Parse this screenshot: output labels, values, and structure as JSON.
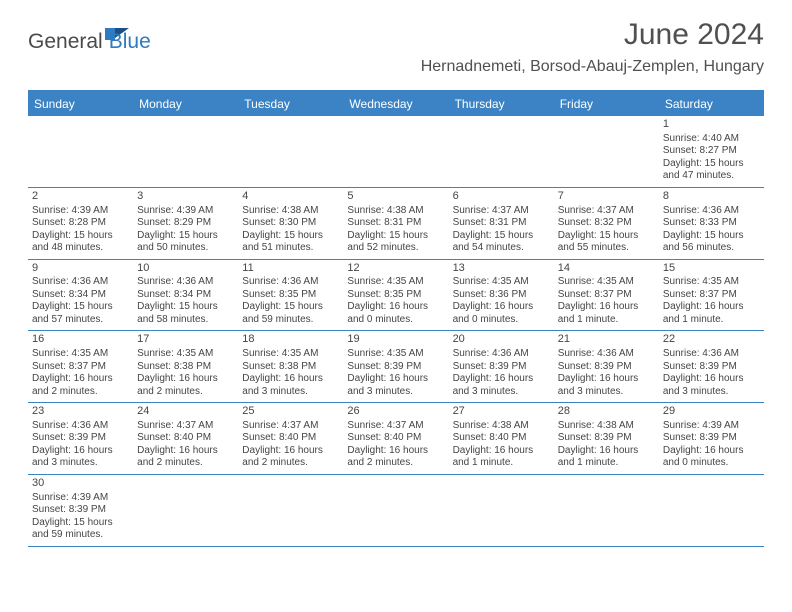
{
  "brand": {
    "part1": "General",
    "part2": "Blue"
  },
  "title": "June 2024",
  "location": "Hernadnemeti, Borsod-Abauj-Zemplen, Hungary",
  "colors": {
    "header_bg": "#3b83c4",
    "header_text": "#ffffff",
    "body_text": "#454545",
    "brand_gray": "#4a4a4a",
    "brand_blue": "#2f7ac0",
    "empty_week_bg": "#f2f2f2",
    "page_bg": "#ffffff"
  },
  "typography": {
    "title_fontsize": 30,
    "location_fontsize": 16,
    "dow_fontsize": 12,
    "cell_fontsize": 10,
    "daynum_fontsize": 11
  },
  "dow": [
    "Sunday",
    "Monday",
    "Tuesday",
    "Wednesday",
    "Thursday",
    "Friday",
    "Saturday"
  ],
  "weeks": [
    [
      {
        "empty": true
      },
      {
        "empty": true
      },
      {
        "empty": true
      },
      {
        "empty": true
      },
      {
        "empty": true
      },
      {
        "empty": true
      },
      {
        "day": "1",
        "sunrise": "Sunrise: 4:40 AM",
        "sunset": "Sunset: 8:27 PM",
        "daylight": "Daylight: 15 hours and 47 minutes."
      }
    ],
    [
      {
        "day": "2",
        "sunrise": "Sunrise: 4:39 AM",
        "sunset": "Sunset: 8:28 PM",
        "daylight": "Daylight: 15 hours and 48 minutes."
      },
      {
        "day": "3",
        "sunrise": "Sunrise: 4:39 AM",
        "sunset": "Sunset: 8:29 PM",
        "daylight": "Daylight: 15 hours and 50 minutes."
      },
      {
        "day": "4",
        "sunrise": "Sunrise: 4:38 AM",
        "sunset": "Sunset: 8:30 PM",
        "daylight": "Daylight: 15 hours and 51 minutes."
      },
      {
        "day": "5",
        "sunrise": "Sunrise: 4:38 AM",
        "sunset": "Sunset: 8:31 PM",
        "daylight": "Daylight: 15 hours and 52 minutes."
      },
      {
        "day": "6",
        "sunrise": "Sunrise: 4:37 AM",
        "sunset": "Sunset: 8:31 PM",
        "daylight": "Daylight: 15 hours and 54 minutes."
      },
      {
        "day": "7",
        "sunrise": "Sunrise: 4:37 AM",
        "sunset": "Sunset: 8:32 PM",
        "daylight": "Daylight: 15 hours and 55 minutes."
      },
      {
        "day": "8",
        "sunrise": "Sunrise: 4:36 AM",
        "sunset": "Sunset: 8:33 PM",
        "daylight": "Daylight: 15 hours and 56 minutes."
      }
    ],
    [
      {
        "day": "9",
        "sunrise": "Sunrise: 4:36 AM",
        "sunset": "Sunset: 8:34 PM",
        "daylight": "Daylight: 15 hours and 57 minutes."
      },
      {
        "day": "10",
        "sunrise": "Sunrise: 4:36 AM",
        "sunset": "Sunset: 8:34 PM",
        "daylight": "Daylight: 15 hours and 58 minutes."
      },
      {
        "day": "11",
        "sunrise": "Sunrise: 4:36 AM",
        "sunset": "Sunset: 8:35 PM",
        "daylight": "Daylight: 15 hours and 59 minutes."
      },
      {
        "day": "12",
        "sunrise": "Sunrise: 4:35 AM",
        "sunset": "Sunset: 8:35 PM",
        "daylight": "Daylight: 16 hours and 0 minutes."
      },
      {
        "day": "13",
        "sunrise": "Sunrise: 4:35 AM",
        "sunset": "Sunset: 8:36 PM",
        "daylight": "Daylight: 16 hours and 0 minutes."
      },
      {
        "day": "14",
        "sunrise": "Sunrise: 4:35 AM",
        "sunset": "Sunset: 8:37 PM",
        "daylight": "Daylight: 16 hours and 1 minute."
      },
      {
        "day": "15",
        "sunrise": "Sunrise: 4:35 AM",
        "sunset": "Sunset: 8:37 PM",
        "daylight": "Daylight: 16 hours and 1 minute."
      }
    ],
    [
      {
        "day": "16",
        "sunrise": "Sunrise: 4:35 AM",
        "sunset": "Sunset: 8:37 PM",
        "daylight": "Daylight: 16 hours and 2 minutes."
      },
      {
        "day": "17",
        "sunrise": "Sunrise: 4:35 AM",
        "sunset": "Sunset: 8:38 PM",
        "daylight": "Daylight: 16 hours and 2 minutes."
      },
      {
        "day": "18",
        "sunrise": "Sunrise: 4:35 AM",
        "sunset": "Sunset: 8:38 PM",
        "daylight": "Daylight: 16 hours and 3 minutes."
      },
      {
        "day": "19",
        "sunrise": "Sunrise: 4:35 AM",
        "sunset": "Sunset: 8:39 PM",
        "daylight": "Daylight: 16 hours and 3 minutes."
      },
      {
        "day": "20",
        "sunrise": "Sunrise: 4:36 AM",
        "sunset": "Sunset: 8:39 PM",
        "daylight": "Daylight: 16 hours and 3 minutes."
      },
      {
        "day": "21",
        "sunrise": "Sunrise: 4:36 AM",
        "sunset": "Sunset: 8:39 PM",
        "daylight": "Daylight: 16 hours and 3 minutes."
      },
      {
        "day": "22",
        "sunrise": "Sunrise: 4:36 AM",
        "sunset": "Sunset: 8:39 PM",
        "daylight": "Daylight: 16 hours and 3 minutes."
      }
    ],
    [
      {
        "day": "23",
        "sunrise": "Sunrise: 4:36 AM",
        "sunset": "Sunset: 8:39 PM",
        "daylight": "Daylight: 16 hours and 3 minutes."
      },
      {
        "day": "24",
        "sunrise": "Sunrise: 4:37 AM",
        "sunset": "Sunset: 8:40 PM",
        "daylight": "Daylight: 16 hours and 2 minutes."
      },
      {
        "day": "25",
        "sunrise": "Sunrise: 4:37 AM",
        "sunset": "Sunset: 8:40 PM",
        "daylight": "Daylight: 16 hours and 2 minutes."
      },
      {
        "day": "26",
        "sunrise": "Sunrise: 4:37 AM",
        "sunset": "Sunset: 8:40 PM",
        "daylight": "Daylight: 16 hours and 2 minutes."
      },
      {
        "day": "27",
        "sunrise": "Sunrise: 4:38 AM",
        "sunset": "Sunset: 8:40 PM",
        "daylight": "Daylight: 16 hours and 1 minute."
      },
      {
        "day": "28",
        "sunrise": "Sunrise: 4:38 AM",
        "sunset": "Sunset: 8:39 PM",
        "daylight": "Daylight: 16 hours and 1 minute."
      },
      {
        "day": "29",
        "sunrise": "Sunrise: 4:39 AM",
        "sunset": "Sunset: 8:39 PM",
        "daylight": "Daylight: 16 hours and 0 minutes."
      }
    ],
    [
      {
        "day": "30",
        "sunrise": "Sunrise: 4:39 AM",
        "sunset": "Sunset: 8:39 PM",
        "daylight": "Daylight: 15 hours and 59 minutes."
      },
      {
        "empty": true
      },
      {
        "empty": true
      },
      {
        "empty": true
      },
      {
        "empty": true
      },
      {
        "empty": true
      },
      {
        "empty": true
      }
    ]
  ]
}
